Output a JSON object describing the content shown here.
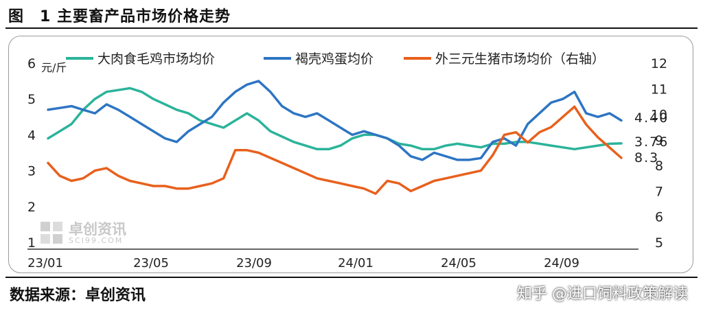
{
  "header": {
    "title": "图　1 主要畜产品市场价格走势"
  },
  "footer": {
    "source": "数据来源：卓创资讯",
    "credit": "知乎 @进口饲料政策解读"
  },
  "watermark": {
    "name": "卓创资讯",
    "domain": "SCI99.COM"
  },
  "chart_data": {
    "type": "line",
    "yunit": "元/斤",
    "ylim": [
      1,
      6
    ],
    "y2lim": [
      5,
      12
    ],
    "yticks": [
      "1",
      "2",
      "3",
      "4",
      "5",
      "6"
    ],
    "y2ticks": [
      "5",
      "6",
      "7",
      "8",
      "9",
      "10",
      "11",
      "12"
    ],
    "xticks": [
      "23/01",
      "23/05",
      "23/09",
      "24/01",
      "24/05",
      "24/09"
    ],
    "legend_position": "top",
    "series": [
      {
        "name": "大肉食毛鸡市场均价",
        "axis": "left",
        "color": "#2bb39a",
        "end_label": "3.76",
        "values": [
          3.9,
          4.1,
          4.3,
          4.7,
          5.0,
          5.2,
          5.25,
          5.3,
          5.2,
          5.0,
          4.85,
          4.7,
          4.6,
          4.4,
          4.3,
          4.2,
          4.4,
          4.6,
          4.4,
          4.1,
          3.95,
          3.8,
          3.7,
          3.6,
          3.6,
          3.7,
          3.9,
          4.0,
          4.0,
          3.9,
          3.75,
          3.7,
          3.6,
          3.6,
          3.7,
          3.75,
          3.7,
          3.65,
          3.75,
          3.75,
          3.8,
          3.8,
          3.75,
          3.7,
          3.65,
          3.6,
          3.65,
          3.7,
          3.75,
          3.76
        ]
      },
      {
        "name": "褐壳鸡蛋均价",
        "axis": "left",
        "color": "#2e75c3",
        "end_label": "4.40",
        "values": [
          4.7,
          4.75,
          4.8,
          4.7,
          4.6,
          4.85,
          4.7,
          4.5,
          4.3,
          4.1,
          3.9,
          3.8,
          4.1,
          4.3,
          4.5,
          4.9,
          5.2,
          5.4,
          5.5,
          5.2,
          4.8,
          4.6,
          4.5,
          4.6,
          4.4,
          4.2,
          4.0,
          4.1,
          4.0,
          3.9,
          3.7,
          3.4,
          3.3,
          3.5,
          3.4,
          3.3,
          3.3,
          3.35,
          3.8,
          3.9,
          3.7,
          4.3,
          4.6,
          4.9,
          5.0,
          5.2,
          4.6,
          4.5,
          4.6,
          4.4
        ]
      },
      {
        "name": "外三元生猪市场均价（右轴）",
        "axis": "right",
        "color": "#e8601c",
        "end_label": "8.3",
        "values": [
          8.1,
          7.6,
          7.4,
          7.5,
          7.8,
          7.9,
          7.6,
          7.4,
          7.3,
          7.2,
          7.2,
          7.1,
          7.1,
          7.2,
          7.3,
          7.5,
          8.6,
          8.6,
          8.5,
          8.3,
          8.1,
          7.9,
          7.7,
          7.5,
          7.4,
          7.3,
          7.2,
          7.1,
          6.9,
          7.4,
          7.3,
          7.0,
          7.2,
          7.4,
          7.5,
          7.6,
          7.7,
          7.8,
          8.4,
          9.2,
          9.3,
          8.9,
          9.3,
          9.5,
          9.9,
          10.3,
          9.6,
          9.1,
          8.7,
          8.3
        ]
      }
    ]
  }
}
